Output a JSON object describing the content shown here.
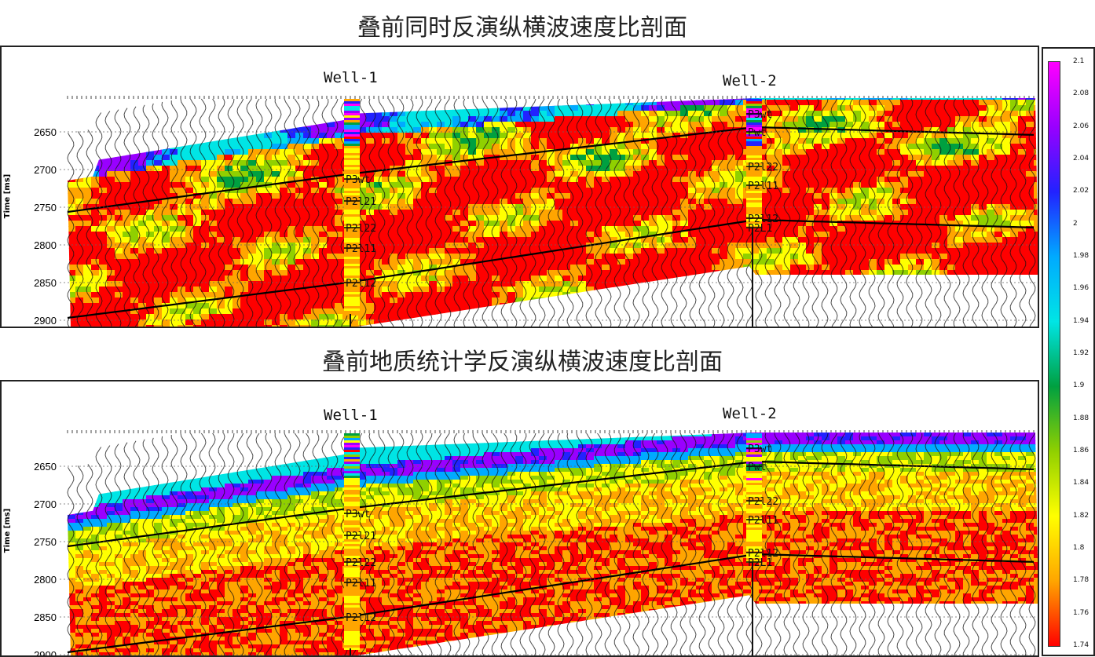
{
  "titles": {
    "top": "叠前同时反演纵横波速度比剖面",
    "bottom": "叠前地质统计学反演纵横波速度比剖面"
  },
  "wells": [
    "Well-1",
    "Well-2"
  ],
  "axis": {
    "ylabel": "Time [ms]",
    "ticks": [
      "2650",
      "2700",
      "2750",
      "2800",
      "2850",
      "2900"
    ]
  },
  "well1_horizons": [
    "P3wt",
    "P2l21",
    "P2l22",
    "P2l11",
    "P2l12"
  ],
  "well2_horizons": [
    "P3wt",
    "Pwt",
    "P2l22",
    "P2l11",
    "P2l12",
    "P2L1"
  ],
  "colorbar": {
    "ticks": [
      "2.1",
      "2.08",
      "2.06",
      "2.04",
      "2.02",
      "2",
      "1.98",
      "1.96",
      "1.94",
      "1.92",
      "1.9",
      "1.88",
      "1.86",
      "1.84",
      "1.82",
      "1.8",
      "1.78",
      "1.76",
      "1.74"
    ],
    "colors": [
      "#ff00ff",
      "#9900ff",
      "#2222ff",
      "#00aaff",
      "#00e5e5",
      "#00a040",
      "#90d000",
      "#ffff00",
      "#ffa500",
      "#ff0000"
    ]
  },
  "chart_data": [
    {
      "type": "heatmap",
      "title": "叠前同时反演纵横波速度比剖面",
      "ylabel": "Time [ms]",
      "ylim": [
        2910,
        2600
      ],
      "horizons_time_ms_at_well1": {
        "P3wt": 2710,
        "P2l21": 2740,
        "P2l22": 2775,
        "P2l11": 2800,
        "P2l12": 2850
      },
      "horizons_time_ms_at_well2": {
        "P3wt": 2630,
        "Pwt": 2655,
        "P2l22": 2700,
        "P2l11": 2720,
        "P2l12": 2765
      },
      "colorbar_range": [
        1.74,
        2.1
      ]
    },
    {
      "type": "heatmap",
      "title": "叠前地质统计学反演纵横波速度比剖面",
      "ylabel": "Time [ms]",
      "ylim": [
        2910,
        2600
      ],
      "horizons_time_ms_at_well1": {
        "P3wt": 2710,
        "P2l21": 2740,
        "P2l22": 2775,
        "P2l11": 2800,
        "P2l12": 2850
      },
      "horizons_time_ms_at_well2": {
        "P3wt": 2630,
        "Pwt": 2655,
        "P2l22": 2700,
        "P2l11": 2720,
        "P2l12": 2765
      },
      "colorbar_range": [
        1.74,
        2.1
      ]
    }
  ]
}
